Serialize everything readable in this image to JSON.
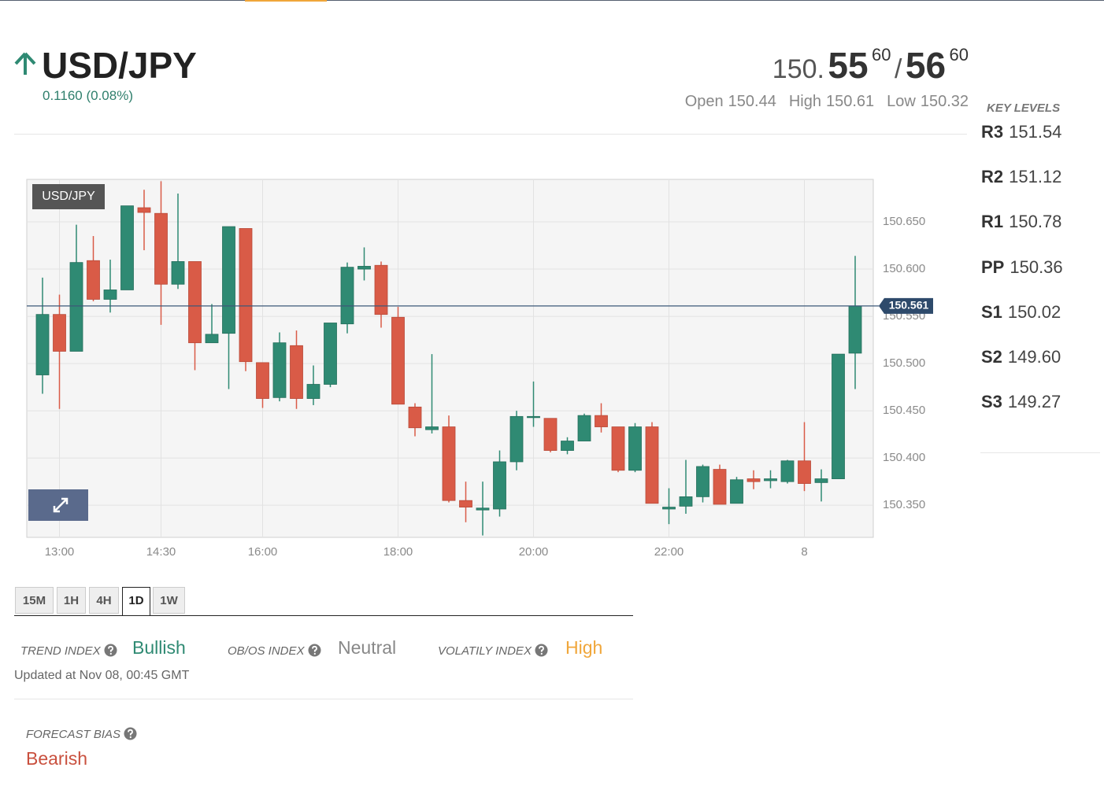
{
  "header": {
    "symbol": "USD/JPY",
    "change": "0.1160 (0.08%)",
    "price": {
      "big_figure": "150.",
      "bid_pips": "55",
      "bid_fraction": "60",
      "separator": "/",
      "ask_pips": "56",
      "ask_fraction": "60"
    },
    "ohl": [
      {
        "label": "Open",
        "value": "150.44"
      },
      {
        "label": "High",
        "value": "150.61"
      },
      {
        "label": "Low",
        "value": "150.32"
      }
    ]
  },
  "key_levels": {
    "title": "KEY LEVELS",
    "levels": [
      {
        "label": "R3",
        "value": "151.54"
      },
      {
        "label": "R2",
        "value": "151.12"
      },
      {
        "label": "R1",
        "value": "150.78"
      },
      {
        "label": "PP",
        "value": "150.36"
      },
      {
        "label": "S1",
        "value": "150.02"
      },
      {
        "label": "S2",
        "value": "149.60"
      },
      {
        "label": "S3",
        "value": "149.27"
      }
    ]
  },
  "chart_data": {
    "type": "candlestick",
    "label": "USD/JPY",
    "categories": [
      null,
      "13:00",
      null,
      null,
      null,
      null,
      null,
      "14:30",
      null,
      null,
      null,
      null,
      null,
      "16:00",
      null,
      null,
      null,
      null,
      null,
      null,
      null,
      "18:00",
      null,
      null,
      null,
      null,
      null,
      null,
      null,
      "20:00",
      null,
      null,
      null,
      null,
      null,
      null,
      null,
      "22:00",
      null,
      null,
      null,
      null,
      null,
      null,
      null,
      "8",
      null,
      null,
      null
    ],
    "open": [
      150.488,
      150.552,
      150.513,
      150.609,
      150.568,
      150.578,
      150.665,
      150.659,
      150.584,
      150.608,
      150.522,
      150.532,
      150.643,
      150.501,
      150.464,
      150.519,
      150.463,
      150.478,
      150.542,
      150.6,
      150.604,
      150.549,
      150.454,
      150.43,
      150.433,
      150.355,
      150.345,
      150.346,
      150.396,
      150.443,
      150.442,
      150.408,
      150.418,
      150.445,
      150.433,
      150.387,
      150.433,
      150.346,
      150.349,
      150.359,
      150.388,
      150.352,
      150.378,
      150.376,
      150.375,
      150.397,
      150.374,
      150.378,
      150.511
    ],
    "high": [
      150.591,
      150.573,
      150.647,
      150.635,
      150.61,
      150.667,
      150.684,
      150.693,
      150.68,
      150.608,
      150.563,
      150.645,
      150.643,
      150.501,
      150.533,
      150.535,
      150.498,
      150.543,
      150.607,
      150.623,
      150.608,
      150.56,
      150.458,
      150.51,
      150.445,
      150.375,
      150.375,
      150.408,
      150.45,
      150.481,
      150.442,
      150.422,
      150.447,
      150.458,
      150.433,
      150.437,
      150.438,
      150.368,
      150.398,
      150.393,
      150.393,
      150.38,
      150.387,
      150.387,
      150.398,
      150.438,
      150.388,
      150.51,
      150.614
    ],
    "low": [
      150.468,
      150.452,
      150.513,
      150.566,
      150.554,
      150.578,
      150.62,
      150.541,
      150.579,
      150.493,
      150.522,
      150.473,
      150.492,
      150.453,
      150.46,
      150.452,
      150.456,
      150.475,
      150.532,
      150.588,
      150.538,
      150.457,
      150.423,
      150.426,
      150.353,
      150.332,
      150.318,
      150.338,
      150.387,
      150.433,
      150.406,
      150.404,
      150.418,
      150.427,
      150.385,
      150.385,
      150.352,
      150.33,
      150.341,
      150.353,
      150.351,
      150.352,
      150.367,
      150.368,
      150.373,
      150.365,
      150.354,
      150.378,
      150.473
    ],
    "close": [
      150.552,
      150.513,
      150.607,
      150.568,
      150.578,
      150.667,
      150.66,
      150.584,
      150.608,
      150.522,
      150.531,
      150.645,
      150.502,
      150.463,
      150.522,
      150.463,
      150.478,
      150.543,
      150.602,
      150.603,
      150.552,
      150.457,
      150.432,
      150.433,
      150.355,
      150.348,
      150.347,
      150.396,
      150.444,
      150.444,
      150.408,
      150.418,
      150.445,
      150.433,
      150.387,
      150.433,
      150.352,
      150.348,
      150.359,
      150.391,
      150.351,
      150.377,
      150.375,
      150.378,
      150.397,
      150.373,
      150.378,
      150.51,
      150.561
    ],
    "up_color": "#2f8a73",
    "down_color": "#d95b47",
    "ylim": [
      150.316,
      150.695
    ],
    "yticks": [
      {
        "value": 150.35,
        "label": "150.350"
      },
      {
        "value": 150.4,
        "label": "150.400"
      },
      {
        "value": 150.45,
        "label": "150.450"
      },
      {
        "value": 150.5,
        "label": "150.500"
      },
      {
        "value": 150.55,
        "label": "150.550"
      },
      {
        "value": 150.6,
        "label": "150.600"
      },
      {
        "value": 150.65,
        "label": "150.650"
      }
    ],
    "price_line": 150.561,
    "grid": true
  },
  "timeframes": {
    "tabs": [
      "15M",
      "1H",
      "4H",
      "1D",
      "1W"
    ],
    "active": "1D"
  },
  "indices": [
    {
      "label": "TREND INDEX",
      "value": "Bullish",
      "color": "#2f8a73"
    },
    {
      "label": "OB/OS INDEX",
      "value": "Neutral",
      "color": "#888888"
    },
    {
      "label": "VOLATILY INDEX",
      "value": "High",
      "color": "#f0a63a"
    }
  ],
  "updated": "Updated at Nov 08, 00:45 GMT",
  "forecast": {
    "label": "FORECAST BIAS",
    "value": "Bearish",
    "color": "#c9503e"
  }
}
